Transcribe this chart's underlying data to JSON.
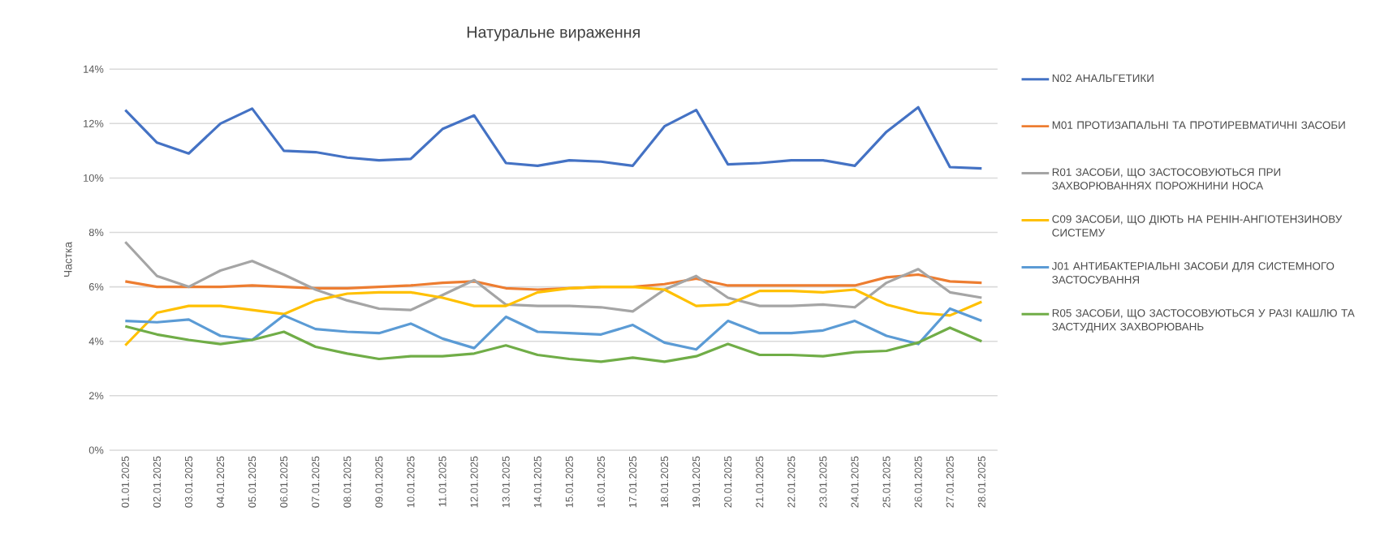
{
  "chart_data": {
    "type": "line",
    "title": "Натуральне вираження",
    "ylabel": "Частка",
    "categories": [
      "01.01.2025",
      "02.01.2025",
      "03.01.2025",
      "04.01.2025",
      "05.01.2025",
      "06.01.2025",
      "07.01.2025",
      "08.01.2025",
      "09.01.2025",
      "10.01.2025",
      "11.01.2025",
      "12.01.2025",
      "13.01.2025",
      "14.01.2025",
      "15.01.2025",
      "16.01.2025",
      "17.01.2025",
      "18.01.2025",
      "19.01.2025",
      "20.01.2025",
      "21.01.2025",
      "22.01.2025",
      "23.01.2025",
      "24.01.2025",
      "25.01.2025",
      "26.01.2025",
      "27.01.2025",
      "28.01.2025"
    ],
    "series": [
      {
        "name": "N02 АНАЛЬГЕТИКИ",
        "color": "#4472c4",
        "values": [
          12.5,
          11.3,
          10.9,
          12.0,
          12.55,
          11.0,
          10.95,
          10.75,
          10.65,
          10.7,
          11.8,
          12.3,
          10.55,
          10.45,
          10.65,
          10.6,
          10.45,
          11.9,
          12.5,
          10.5,
          10.55,
          10.65,
          10.65,
          10.45,
          11.7,
          12.6,
          10.4,
          10.35
        ]
      },
      {
        "name": "M01 ПРОТИЗАПАЛЬНІ ТА ПРОТИРЕВМАТИЧНІ ЗАСОБИ",
        "color": "#ed7d31",
        "values": [
          6.2,
          6.0,
          6.0,
          6.0,
          6.05,
          6.0,
          5.95,
          5.95,
          6.0,
          6.05,
          6.15,
          6.2,
          5.95,
          5.9,
          5.95,
          6.0,
          6.0,
          6.1,
          6.3,
          6.05,
          6.05,
          6.05,
          6.05,
          6.05,
          6.35,
          6.45,
          6.2,
          6.15
        ]
      },
      {
        "name": "R01 ЗАСОБИ, ЩО ЗАСТОСОВУЮТЬСЯ ПРИ ЗАХВОРЮВАННЯХ ПОРОЖНИНИ НОСА",
        "color": "#a5a5a5",
        "values": [
          7.65,
          6.4,
          6.0,
          6.6,
          6.95,
          6.45,
          5.9,
          5.5,
          5.2,
          5.15,
          5.7,
          6.25,
          5.35,
          5.3,
          5.3,
          5.25,
          5.1,
          5.9,
          6.4,
          5.6,
          5.3,
          5.3,
          5.35,
          5.25,
          6.15,
          6.65,
          5.8,
          5.6
        ]
      },
      {
        "name": "C09 ЗАСОБИ, ЩО ДІЮТЬ НА РЕНІН-АНГІОТЕНЗИНОВУ СИСТЕМУ",
        "color": "#ffc000",
        "values": [
          3.85,
          5.05,
          5.3,
          5.3,
          5.15,
          5.0,
          5.5,
          5.75,
          5.8,
          5.8,
          5.6,
          5.3,
          5.3,
          5.8,
          5.95,
          6.0,
          6.0,
          5.9,
          5.3,
          5.35,
          5.85,
          5.85,
          5.8,
          5.9,
          5.35,
          5.05,
          4.95,
          5.45
        ]
      },
      {
        "name": "J01 АНТИБАКТЕРІАЛЬНІ ЗАСОБИ ДЛЯ СИСТЕМНОГО ЗАСТОСУВАННЯ",
        "color": "#5b9bd5",
        "values": [
          4.75,
          4.7,
          4.8,
          4.2,
          4.05,
          4.95,
          4.45,
          4.35,
          4.3,
          4.65,
          4.1,
          3.75,
          4.9,
          4.35,
          4.3,
          4.25,
          4.6,
          3.95,
          3.7,
          4.75,
          4.3,
          4.3,
          4.4,
          4.75,
          4.2,
          3.9,
          5.2,
          4.75
        ]
      },
      {
        "name": "R05 ЗАСОБИ, ЩО ЗАСТОСОВУЮТЬСЯ У РАЗІ КАШЛЮ ТА ЗАСТУДНИХ ЗАХВОРЮВАНЬ",
        "color": "#70ad47",
        "values": [
          4.55,
          4.25,
          4.05,
          3.9,
          4.05,
          4.35,
          3.8,
          3.55,
          3.35,
          3.45,
          3.45,
          3.55,
          3.85,
          3.5,
          3.35,
          3.25,
          3.4,
          3.25,
          3.45,
          3.9,
          3.5,
          3.5,
          3.45,
          3.6,
          3.65,
          3.95,
          4.5,
          4.0
        ]
      }
    ],
    "ylim": [
      0,
      14
    ],
    "yticks": [
      {
        "value": 0,
        "label": "0%"
      },
      {
        "value": 2,
        "label": "2%"
      },
      {
        "value": 4,
        "label": "4%"
      },
      {
        "value": 6,
        "label": "6%"
      },
      {
        "value": 8,
        "label": "8%"
      },
      {
        "value": 10,
        "label": "10%"
      },
      {
        "value": 12,
        "label": "12%"
      },
      {
        "value": 14,
        "label": "14%"
      }
    ],
    "grid": "y",
    "legend": "right",
    "marker": "none",
    "line_style": "solid"
  }
}
